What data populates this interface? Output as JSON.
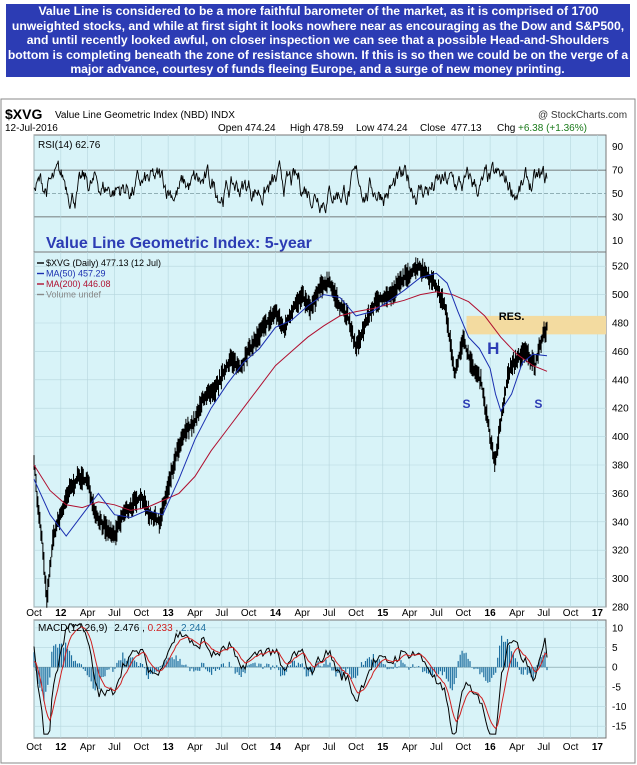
{
  "caption": "Value Line is considered to be a more faithful barometer of the market, as it is comprised of 1700 unweighted stocks, and while at first sight it looks nowhere near as encouraging as the Dow and S&P500, and until recently looked awful, on closer inspection we can see that a possible Head-and-Shoulders bottom is completing beneath the zone of resistance shown. If this is so then we could be on the verge of a major advance, courtesy of funds fleeing Europe, and a surge of new money printing.",
  "header": {
    "symbol": "$XVG",
    "name": "Value Line Geometric Index (NBD) INDX",
    "source": "@ StockCharts.com",
    "date": "12-Jul-2016",
    "open_label": "Open",
    "open": "474.24",
    "high_label": "High",
    "high": "478.59",
    "low_label": "Low",
    "low": "474.24",
    "close_label": "Close",
    "close": "477.13",
    "chg_label": "Chg",
    "chg": "+6.38 (+1.36%)"
  },
  "chart_data": [
    {
      "type": "line",
      "panel": "rsi",
      "label": "RSI(14) 62.76",
      "ylim": [
        0,
        100
      ],
      "y_ticks": [
        10,
        30,
        50,
        70,
        90
      ],
      "reference_lines": [
        30,
        50,
        70
      ],
      "last_value": 62.76
    },
    {
      "type": "line",
      "panel": "price",
      "title": "Value Line Geometric Index: 5-year",
      "legend": [
        {
          "label": "$XVG (Daily) 477.13 (12 Jul)",
          "color": "#000000"
        },
        {
          "label": "MA(50) 457.29",
          "color": "#1a2fb0"
        },
        {
          "label": "MA(200) 446.08",
          "color": "#b01030"
        },
        {
          "label": "Volume undef",
          "color": "#888888"
        }
      ],
      "ylim": [
        280,
        530
      ],
      "y_ticks": [
        280,
        300,
        320,
        340,
        360,
        380,
        400,
        420,
        440,
        460,
        480,
        500,
        520
      ],
      "x_range": [
        2011.75,
        2017.0
      ],
      "series": [
        {
          "name": "$XVG",
          "x": [
            2011.75,
            2011.78,
            2011.82,
            2011.87,
            2011.93,
            2012.0,
            2012.08,
            2012.17,
            2012.25,
            2012.33,
            2012.42,
            2012.5,
            2012.58,
            2012.67,
            2012.75,
            2012.83,
            2012.92,
            2013.0,
            2013.08,
            2013.17,
            2013.25,
            2013.33,
            2013.42,
            2013.5,
            2013.58,
            2013.67,
            2013.75,
            2013.83,
            2013.92,
            2014.0,
            2014.08,
            2014.17,
            2014.25,
            2014.33,
            2014.42,
            2014.5,
            2014.58,
            2014.67,
            2014.75,
            2014.83,
            2014.92,
            2015.0,
            2015.08,
            2015.17,
            2015.25,
            2015.33,
            2015.42,
            2015.5,
            2015.58,
            2015.67,
            2015.75,
            2015.83,
            2015.92,
            2016.0,
            2016.04,
            2016.08,
            2016.12,
            2016.17,
            2016.25,
            2016.33,
            2016.42,
            2016.46,
            2016.5,
            2016.53
          ],
          "values": [
            385,
            355,
            330,
            285,
            330,
            345,
            362,
            372,
            368,
            345,
            335,
            330,
            345,
            352,
            358,
            345,
            340,
            365,
            388,
            405,
            410,
            428,
            430,
            442,
            455,
            448,
            460,
            470,
            480,
            488,
            475,
            492,
            498,
            490,
            505,
            510,
            495,
            485,
            462,
            478,
            493,
            498,
            500,
            510,
            515,
            520,
            514,
            505,
            492,
            445,
            468,
            450,
            438,
            400,
            380,
            400,
            420,
            445,
            455,
            460,
            450,
            465,
            472,
            477
          ]
        },
        {
          "name": "MA(50)",
          "x": [
            2011.75,
            2011.9,
            2012.05,
            2012.2,
            2012.35,
            2012.5,
            2012.65,
            2012.8,
            2012.95,
            2013.1,
            2013.25,
            2013.4,
            2013.55,
            2013.7,
            2013.85,
            2014.0,
            2014.15,
            2014.3,
            2014.45,
            2014.6,
            2014.75,
            2014.9,
            2015.05,
            2015.2,
            2015.35,
            2015.5,
            2015.6,
            2015.7,
            2015.8,
            2015.9,
            2016.0,
            2016.05,
            2016.1,
            2016.2,
            2016.3,
            2016.4,
            2016.53
          ],
          "values": [
            370,
            345,
            330,
            345,
            360,
            345,
            343,
            348,
            345,
            370,
            398,
            420,
            437,
            452,
            462,
            477,
            482,
            492,
            500,
            498,
            485,
            488,
            495,
            503,
            512,
            515,
            508,
            488,
            470,
            462,
            448,
            430,
            418,
            430,
            452,
            458,
            457
          ]
        },
        {
          "name": "MA(200)",
          "x": [
            2011.75,
            2011.9,
            2012.05,
            2012.2,
            2012.35,
            2012.5,
            2012.65,
            2012.8,
            2012.95,
            2013.1,
            2013.25,
            2013.4,
            2013.55,
            2013.7,
            2013.85,
            2014.0,
            2014.15,
            2014.3,
            2014.45,
            2014.6,
            2014.75,
            2014.9,
            2015.05,
            2015.2,
            2015.35,
            2015.5,
            2015.65,
            2015.8,
            2015.95,
            2016.1,
            2016.25,
            2016.4,
            2016.53
          ],
          "values": [
            380,
            362,
            352,
            350,
            354,
            352,
            348,
            350,
            355,
            360,
            372,
            390,
            405,
            420,
            435,
            450,
            460,
            470,
            478,
            485,
            488,
            490,
            493,
            496,
            500,
            502,
            500,
            495,
            485,
            470,
            458,
            450,
            446
          ]
        }
      ],
      "annotations": [
        {
          "text": "RES.",
          "x": 2016.2,
          "y": 482
        },
        {
          "text": "H",
          "x": 2016.03,
          "y": 458
        },
        {
          "text": "S",
          "x": 2015.78,
          "y": 420
        },
        {
          "text": "S",
          "x": 2016.45,
          "y": 420
        }
      ],
      "resistance_zone": [
        472,
        485
      ]
    },
    {
      "type": "line",
      "panel": "macd",
      "label_prefix": "MACD(12,26,9)",
      "macd_value": "2.476",
      "signal_value": "0.233",
      "histogram_value": "2.244",
      "ylim": [
        -18,
        12
      ],
      "y_ticks": [
        -15,
        -10,
        -5,
        0,
        5,
        10
      ]
    }
  ],
  "x_axis": {
    "labels": [
      "Oct",
      "12",
      "Apr",
      "Jul",
      "Oct",
      "13",
      "Apr",
      "Jul",
      "Oct",
      "14",
      "Apr",
      "Jul",
      "Oct",
      "15",
      "Apr",
      "Jul",
      "Oct",
      "16",
      "Apr",
      "Jul",
      "Oct",
      "17"
    ],
    "positions": [
      2011.75,
      2012.0,
      2012.25,
      2012.5,
      2012.75,
      2013.0,
      2013.25,
      2013.5,
      2013.75,
      2014.0,
      2014.25,
      2014.5,
      2014.75,
      2015.0,
      2015.25,
      2015.5,
      2015.75,
      2016.0,
      2016.25,
      2016.5,
      2016.75,
      2017.0
    ]
  },
  "colors": {
    "panel_bg": "#d8f3f8",
    "caption_bg": "#2c3cb4",
    "price": "#000000",
    "ma50": "#1a2fb0",
    "ma200": "#b01030",
    "macd": "#000000",
    "signal": "#d02020",
    "histogram": "#1e6fa0",
    "resistance": "#f3dba0",
    "hs_label": "#2c3cb4"
  }
}
